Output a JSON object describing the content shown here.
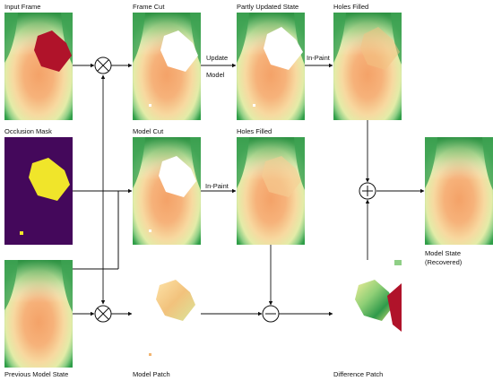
{
  "panels": {
    "input_frame": "Input Frame",
    "frame_cut": "Frame Cut",
    "partly_updated_state": "Partly Updated State",
    "holes_filled_top": "Holes Filled",
    "occlusion_mask": "Occlusion Mask",
    "model_cut": "Model Cut",
    "holes_filled_mid": "Holes Filled",
    "model_state_recovered_line1": "Model State",
    "model_state_recovered_line2": "(Recovered)",
    "previous_model_state": "Previous Model State",
    "model_patch": "Model Patch",
    "difference_patch": "Difference Patch"
  },
  "edges": {
    "update": "Update",
    "model": "Model",
    "in_paint_top": "In-Paint",
    "in_paint_mid": "In-Paint"
  },
  "operators": {
    "multiply": "×",
    "add": "+",
    "subtract": "−"
  }
}
